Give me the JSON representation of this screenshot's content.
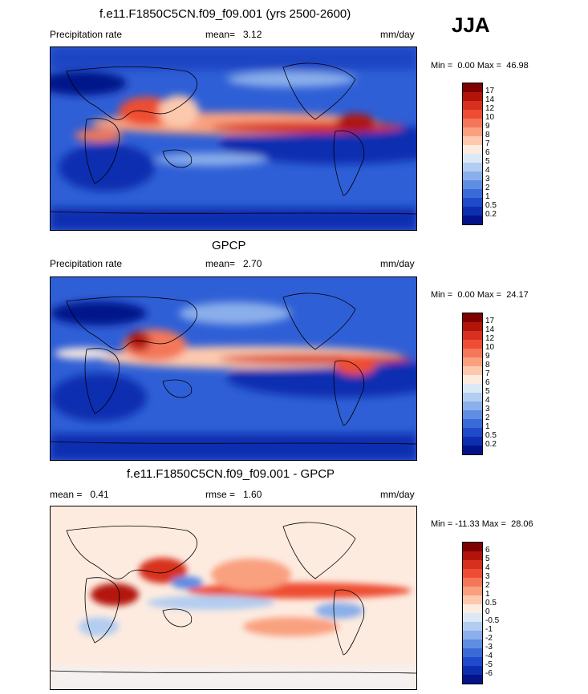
{
  "season": "JJA",
  "panels": [
    {
      "title": "f.e11.F1850C5CN.f09_f09.001 (yrs 2500-2600)",
      "left_label": "Precipitation rate",
      "stat_label": "mean=",
      "stat_value": "3.12",
      "stat2_label": "",
      "stat2_value": "",
      "units": "mm/day",
      "min_label": "Min =",
      "min_value": "0.00",
      "max_label": "Max =",
      "max_value": "46.98",
      "colors": [
        "#7f0000",
        "#b3140a",
        "#d7301f",
        "#ee4d33",
        "#f4775a",
        "#f9a07f",
        "#fcc9ae",
        "#fdebe0",
        "#dbe8f6",
        "#b3cdf0",
        "#8aafea",
        "#5f8de2",
        "#3a6ad8",
        "#1f4acb",
        "#0e2eb0",
        "#04138a"
      ],
      "ticks": [
        "17",
        "14",
        "12",
        "10",
        "9",
        "8",
        "7",
        "6",
        "5",
        "4",
        "3",
        "2",
        "1",
        "0.5",
        "0.2"
      ]
    },
    {
      "title": "GPCP",
      "left_label": "Precipitation rate",
      "stat_label": "mean=",
      "stat_value": "2.70",
      "stat2_label": "",
      "stat2_value": "",
      "units": "mm/day",
      "min_label": "Min =",
      "min_value": "0.00",
      "max_label": "Max =",
      "max_value": "24.17",
      "colors": [
        "#7f0000",
        "#b3140a",
        "#d7301f",
        "#ee4d33",
        "#f4775a",
        "#f9a07f",
        "#fcc9ae",
        "#fdebe0",
        "#dbe8f6",
        "#b3cdf0",
        "#8aafea",
        "#5f8de2",
        "#3a6ad8",
        "#1f4acb",
        "#0e2eb0",
        "#04138a"
      ],
      "ticks": [
        "17",
        "14",
        "12",
        "10",
        "9",
        "8",
        "7",
        "6",
        "5",
        "4",
        "3",
        "2",
        "1",
        "0.5",
        "0.2"
      ]
    },
    {
      "title": "f.e11.F1850C5CN.f09_f09.001 - GPCP",
      "left_label": "mean =",
      "left_value": "0.41",
      "stat_label": "rmse =",
      "stat_value": "1.60",
      "units": "mm/day",
      "min_label": "Min =",
      "min_value": "-11.33",
      "max_label": "Max =",
      "max_value": "28.06",
      "colors": [
        "#7f0000",
        "#b3140a",
        "#d7301f",
        "#ee4d33",
        "#f4775a",
        "#f9a07f",
        "#fcc9ae",
        "#fdebe0",
        "#dbe8f6",
        "#b3cdf0",
        "#8aafea",
        "#5f8de2",
        "#3a6ad8",
        "#1f4acb",
        "#0e2eb0",
        "#04138a"
      ],
      "ticks": [
        "6",
        "5",
        "4",
        "3",
        "2",
        "1",
        "0.5",
        "0",
        "-0.5",
        "-1",
        "-2",
        "-3",
        "-4",
        "-5",
        "-6"
      ]
    }
  ],
  "chart_data": [
    {
      "type": "heatmap",
      "title": "f.e11.F1850C5CN.f09_f09.001 (yrs 2500-2600)",
      "variable": "Precipitation rate",
      "units": "mm/day",
      "mean": 3.12,
      "min": 0.0,
      "max": 46.98,
      "contour_levels": [
        0.2,
        0.5,
        1,
        2,
        3,
        4,
        5,
        6,
        7,
        8,
        9,
        10,
        12,
        14,
        17
      ]
    },
    {
      "type": "heatmap",
      "title": "GPCP",
      "variable": "Precipitation rate",
      "units": "mm/day",
      "mean": 2.7,
      "min": 0.0,
      "max": 24.17,
      "contour_levels": [
        0.2,
        0.5,
        1,
        2,
        3,
        4,
        5,
        6,
        7,
        8,
        9,
        10,
        12,
        14,
        17
      ]
    },
    {
      "type": "heatmap",
      "title": "f.e11.F1850C5CN.f09_f09.001 - GPCP",
      "units": "mm/day",
      "mean": 0.41,
      "rmse": 1.6,
      "min": -11.33,
      "max": 28.06,
      "contour_levels": [
        -6,
        -5,
        -4,
        -3,
        -2,
        -1,
        -0.5,
        0,
        0.5,
        1,
        2,
        3,
        4,
        5,
        6
      ]
    }
  ]
}
